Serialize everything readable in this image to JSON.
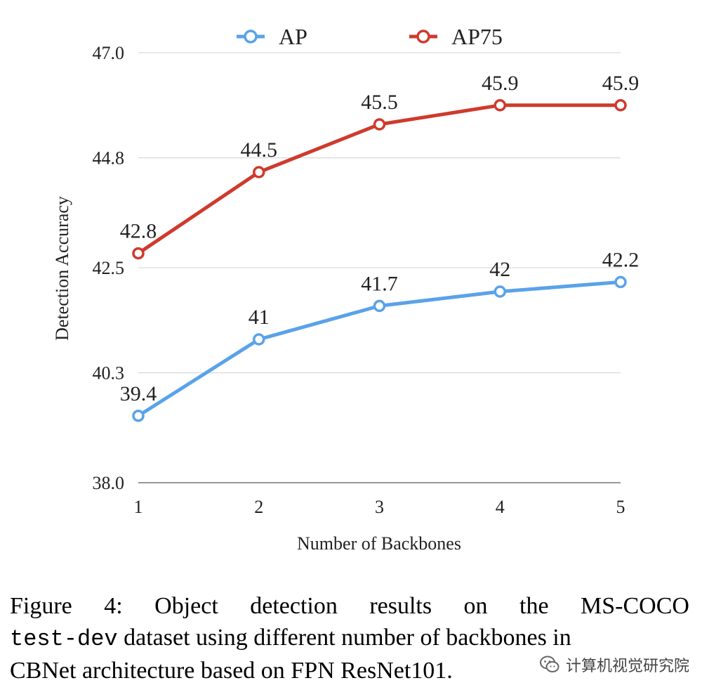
{
  "chart_data": {
    "type": "line",
    "title": "",
    "xlabel": "Number of Backbones",
    "ylabel": "Detection Accuracy",
    "x": [
      1,
      2,
      3,
      4,
      5
    ],
    "x_tick_labels": [
      "1",
      "2",
      "3",
      "4",
      "5"
    ],
    "y_ticks": [
      38.0,
      40.3,
      42.5,
      44.8,
      47.0
    ],
    "y_tick_labels": [
      "38.0",
      "40.3",
      "42.5",
      "44.8",
      "47.0"
    ],
    "ylim": [
      38.0,
      47.0
    ],
    "grid": "horizontal",
    "legend_position": "top-center",
    "series": [
      {
        "name": "AP",
        "values": [
          39.4,
          41,
          41.7,
          42,
          42.2
        ],
        "labels": [
          "39.4",
          "41",
          "41.7",
          "42",
          "42.2"
        ],
        "color": "#5aa2ea"
      },
      {
        "name": "AP75",
        "values": [
          42.8,
          44.5,
          45.5,
          45.9,
          45.9
        ],
        "labels": [
          "42.8",
          "44.5",
          "45.5",
          "45.9",
          "45.9"
        ],
        "color": "#cf3a2d"
      }
    ]
  },
  "caption": {
    "line1": [
      "Figure",
      "4:",
      "Object",
      "detection",
      "results",
      "on",
      "the",
      "MS-COCO"
    ],
    "code": "test-dev",
    "line2_rest": "dataset using different number of backbones in",
    "line3": "CBNet architecture based on FPN ResNet101."
  },
  "watermark": {
    "text": "计算机视觉研究院",
    "icon": "wechat-icon"
  }
}
